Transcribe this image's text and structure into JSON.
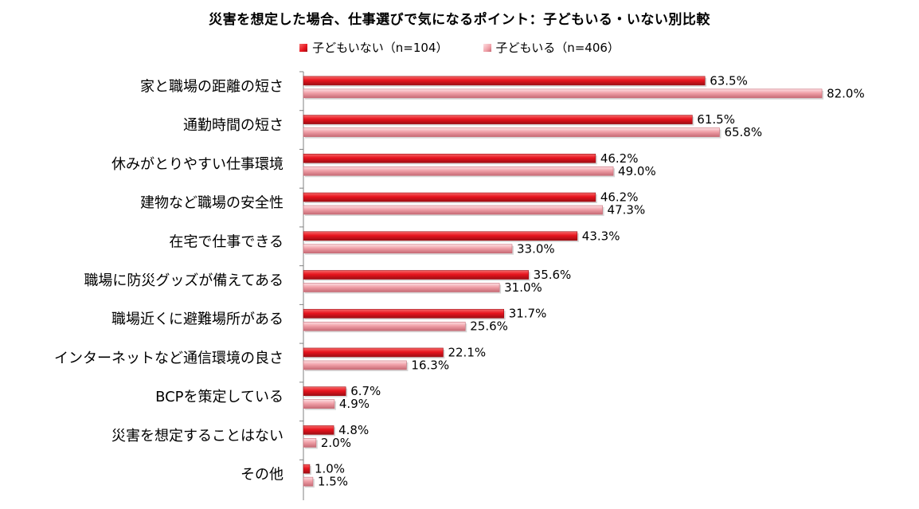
{
  "chart_data": {
    "type": "bar",
    "orientation": "horizontal",
    "title": "災害を想定した場合、仕事選びで気になるポイント：子どもいる・いない別比較",
    "xlabel": "",
    "ylabel": "",
    "xlim": [
      0,
      100
    ],
    "grid": false,
    "legend_position": "top-center",
    "value_suffix": "%",
    "categories": [
      "家と職場の距離の短さ",
      "通勤時間の短さ",
      "休みがとりやすい仕事環境",
      "建物など職場の安全性",
      "在宅で仕事できる",
      "職場に防災グッズが備えてある",
      "職場近くに避難場所がある",
      "インターネットなど通信環境の良さ",
      "BCPを策定している",
      "災害を想定することはない",
      "その他"
    ],
    "series": [
      {
        "name": "子どもいない（n=104）",
        "color": "#e8141e",
        "light": "#f46a6a",
        "dark": "#9e0d14",
        "values": [
          63.5,
          61.5,
          46.2,
          46.2,
          43.3,
          35.6,
          31.7,
          22.1,
          6.7,
          4.8,
          1.0
        ]
      },
      {
        "name": "子どもいる（n=406）",
        "color": "#f0a0a8",
        "light": "#fde0e3",
        "dark": "#c76a75",
        "values": [
          82.0,
          65.8,
          49.0,
          47.3,
          33.0,
          31.0,
          25.6,
          16.3,
          4.9,
          2.0,
          1.5
        ]
      }
    ]
  }
}
